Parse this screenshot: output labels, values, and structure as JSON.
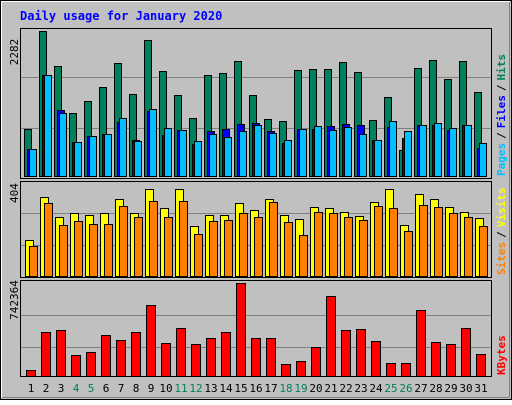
{
  "title": "Daily usage for January 2020",
  "colors": {
    "background": "#c0c0c0",
    "title": "#0000ff",
    "hits": "#00805c",
    "files": "#0000ff",
    "pages": "#00c0ff",
    "visits": "#ffff00",
    "sites": "#ff8000",
    "kbytes": "#ff0000",
    "weekend": "#00805c",
    "weekday": "#000000",
    "slash": "#000000"
  },
  "chart_data": [
    {
      "type": "bar",
      "panel": "requests",
      "categories": [
        "1",
        "2",
        "3",
        "4",
        "5",
        "6",
        "7",
        "8",
        "9",
        "10",
        "11",
        "12",
        "13",
        "14",
        "15",
        "16",
        "17",
        "18",
        "19",
        "20",
        "21",
        "22",
        "23",
        "24",
        "25",
        "26",
        "27",
        "28",
        "29",
        "30",
        "31"
      ],
      "ymax_label": "2282",
      "ylim": [
        0,
        2282
      ],
      "legend": [
        {
          "name": "Pages",
          "color": "#00c0ff"
        },
        {
          "name": "Files",
          "color": "#0000ff"
        },
        {
          "name": "Hits",
          "color": "#00805c"
        }
      ],
      "series": [
        {
          "name": "Hits",
          "values": [
            730,
            2270,
            1720,
            980,
            1180,
            1390,
            1760,
            1280,
            2130,
            1640,
            1260,
            900,
            1580,
            1610,
            1790,
            1260,
            890,
            860,
            1650,
            1680,
            1670,
            1780,
            1630,
            870,
            1240,
            410,
            1690,
            1810,
            1510,
            1790,
            1320
          ]
        },
        {
          "name": "Files",
          "values": [
            420,
            1580,
            1030,
            530,
            620,
            660,
            850,
            570,
            1010,
            640,
            720,
            500,
            700,
            740,
            810,
            830,
            700,
            510,
            740,
            740,
            780,
            810,
            800,
            560,
            760,
            590,
            800,
            800,
            720,
            800,
            440
          ]
        },
        {
          "name": "Pages",
          "values": [
            420,
            1580,
            990,
            530,
            620,
            660,
            910,
            550,
            1040,
            750,
            720,
            550,
            650,
            610,
            700,
            790,
            670,
            560,
            740,
            780,
            720,
            770,
            650,
            560,
            860,
            700,
            800,
            830,
            750,
            790,
            510
          ]
        }
      ]
    },
    {
      "type": "bar",
      "panel": "visitors",
      "categories": [
        "1",
        "2",
        "3",
        "4",
        "5",
        "6",
        "7",
        "8",
        "9",
        "10",
        "11",
        "12",
        "13",
        "14",
        "15",
        "16",
        "17",
        "18",
        "19",
        "20",
        "21",
        "22",
        "23",
        "24",
        "25",
        "26",
        "27",
        "28",
        "29",
        "30",
        "31"
      ],
      "ymax_label": "404",
      "ylim": [
        0,
        404
      ],
      "legend": [
        {
          "name": "Sites",
          "color": "#ff8000"
        },
        {
          "name": "Visits",
          "color": "#ffff00"
        }
      ],
      "series": [
        {
          "name": "Visits",
          "values": [
            160,
            345,
            258,
            278,
            268,
            278,
            338,
            278,
            384,
            298,
            380,
            220,
            268,
            268,
            320,
            290,
            340,
            270,
            250,
            305,
            300,
            280,
            265,
            325,
            380,
            225,
            360,
            340,
            305,
            280,
            255
          ]
        },
        {
          "name": "Sites",
          "values": [
            130,
            320,
            225,
            240,
            228,
            230,
            308,
            258,
            330,
            258,
            330,
            185,
            242,
            245,
            278,
            258,
            324,
            238,
            180,
            280,
            278,
            258,
            248,
            308,
            298,
            198,
            312,
            304,
            278,
            258,
            220
          ]
        }
      ]
    },
    {
      "type": "bar",
      "panel": "traffic",
      "categories": [
        "1",
        "2",
        "3",
        "4",
        "5",
        "6",
        "7",
        "8",
        "9",
        "10",
        "11",
        "12",
        "13",
        "14",
        "15",
        "16",
        "17",
        "18",
        "19",
        "20",
        "21",
        "22",
        "23",
        "24",
        "25",
        "26",
        "27",
        "28",
        "29",
        "30",
        "31"
      ],
      "ymax_label": "742364",
      "ylim": [
        0,
        742364
      ],
      "legend": [
        {
          "name": "KBytes",
          "color": "#ff0000"
        }
      ],
      "series": [
        {
          "name": "KBytes",
          "values": [
            45000,
            350000,
            365000,
            170000,
            190000,
            330000,
            290000,
            350000,
            565000,
            260000,
            385000,
            255000,
            305000,
            350000,
            742364,
            300000,
            300000,
            95000,
            120000,
            230000,
            642000,
            370000,
            375000,
            280000,
            105000,
            105000,
            525000,
            270000,
            255000,
            380000,
            175000
          ]
        }
      ]
    }
  ],
  "day_labels": [
    {
      "text": "1",
      "weekend": false
    },
    {
      "text": "2",
      "weekend": false
    },
    {
      "text": "3",
      "weekend": false
    },
    {
      "text": "4",
      "weekend": true
    },
    {
      "text": "5",
      "weekend": true
    },
    {
      "text": "6",
      "weekend": false
    },
    {
      "text": "7",
      "weekend": false
    },
    {
      "text": "8",
      "weekend": false
    },
    {
      "text": "9",
      "weekend": false
    },
    {
      "text": "10",
      "weekend": false
    },
    {
      "text": "11",
      "weekend": true
    },
    {
      "text": "12",
      "weekend": true
    },
    {
      "text": "13",
      "weekend": false
    },
    {
      "text": "14",
      "weekend": false
    },
    {
      "text": "15",
      "weekend": false
    },
    {
      "text": "16",
      "weekend": false
    },
    {
      "text": "17",
      "weekend": false
    },
    {
      "text": "18",
      "weekend": true
    },
    {
      "text": "19",
      "weekend": true
    },
    {
      "text": "20",
      "weekend": false
    },
    {
      "text": "21",
      "weekend": false
    },
    {
      "text": "22",
      "weekend": false
    },
    {
      "text": "23",
      "weekend": false
    },
    {
      "text": "24",
      "weekend": false
    },
    {
      "text": "25",
      "weekend": true
    },
    {
      "text": "26",
      "weekend": true
    },
    {
      "text": "27",
      "weekend": false
    },
    {
      "text": "28",
      "weekend": false
    },
    {
      "text": "29",
      "weekend": false
    },
    {
      "text": "30",
      "weekend": false
    },
    {
      "text": "31",
      "weekend": false
    }
  ],
  "separator": "/"
}
